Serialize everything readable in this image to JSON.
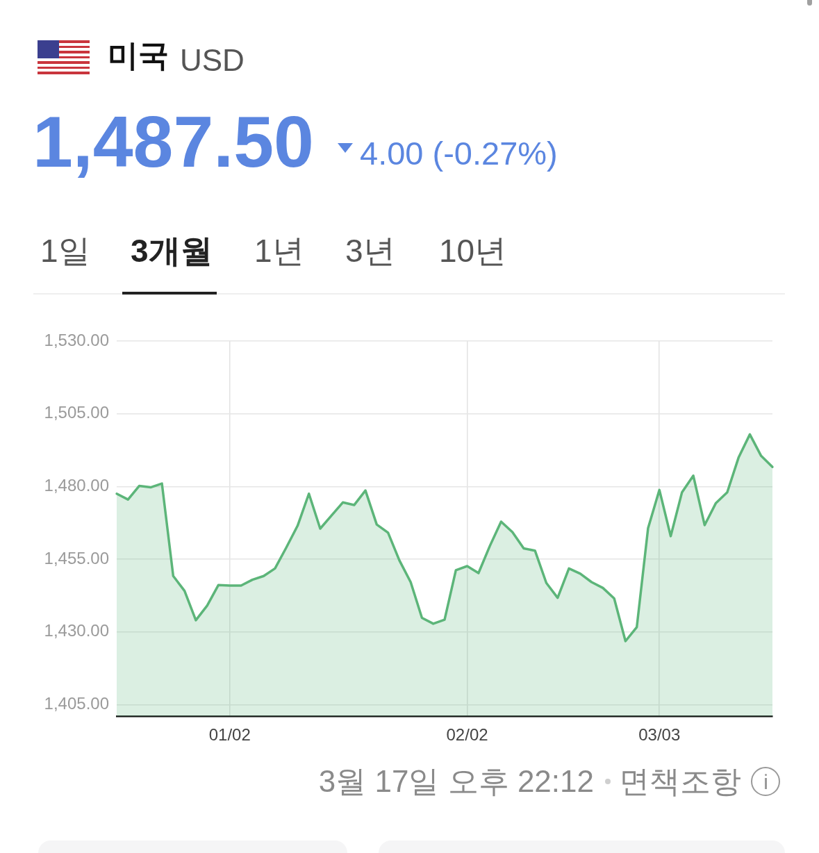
{
  "chart_data": {
    "type": "area",
    "title": "미국",
    "subtitle": "USD",
    "annotations": [
      "1,487.50",
      "4.00 (-0.27%)",
      "1일",
      "3개월",
      "1년",
      "3년",
      "10년",
      "3월 17일 오후 22:12",
      "면책조항"
    ],
    "categories": [
      null,
      null,
      null,
      null,
      null,
      null,
      null,
      null,
      null,
      null,
      "01/02",
      null,
      null,
      null,
      null,
      null,
      null,
      null,
      null,
      null,
      null,
      null,
      null,
      null,
      null,
      null,
      null,
      null,
      null,
      null,
      null,
      "02/02",
      null,
      null,
      null,
      null,
      null,
      null,
      null,
      null,
      null,
      null,
      null,
      null,
      null,
      null,
      null,
      null,
      "03/03",
      null,
      null,
      null,
      null,
      null,
      null,
      null,
      null,
      null,
      null
    ],
    "series": [
      {
        "color": "#5cb579",
        "values": [
          1477.5,
          1475.5,
          1480.2,
          1479.7,
          1481.0,
          1449.2,
          1444.1,
          1434.0,
          1439.0,
          1446.1,
          1445.9,
          1445.9,
          1447.9,
          1449.2,
          1451.8,
          1459.0,
          1466.5,
          1477.5,
          1465.5,
          1470.0,
          1474.5,
          1473.6,
          1478.6,
          1466.9,
          1464.1,
          1454.6,
          1447.1,
          1434.8,
          1432.8,
          1434.2,
          1451.2,
          1452.6,
          1450.2,
          1459.5,
          1467.9,
          1464.3,
          1458.7,
          1457.9,
          1446.8,
          1441.7,
          1451.8,
          1450.0,
          1447.1,
          1445.1,
          1441.5,
          1426.8,
          1431.6,
          1465.7,
          1478.8,
          1462.9,
          1478.0,
          1483.7,
          1466.7,
          1474.3,
          1478.0,
          1489.9,
          1497.9,
          1490.5,
          1486.7
        ]
      }
    ],
    "ylim": [
      1401,
      1530
    ],
    "yticks": [
      {
        "value": 1405,
        "label": "1,405.00"
      },
      {
        "value": 1430,
        "label": "1,430.00"
      },
      {
        "value": 1455,
        "label": "1,455.00"
      },
      {
        "value": 1480,
        "label": "1,480.00"
      },
      {
        "value": 1505,
        "label": "1,505.00"
      },
      {
        "value": 1530,
        "label": "1,530.00"
      }
    ],
    "grid": true,
    "legend": false,
    "marker": "none"
  }
}
